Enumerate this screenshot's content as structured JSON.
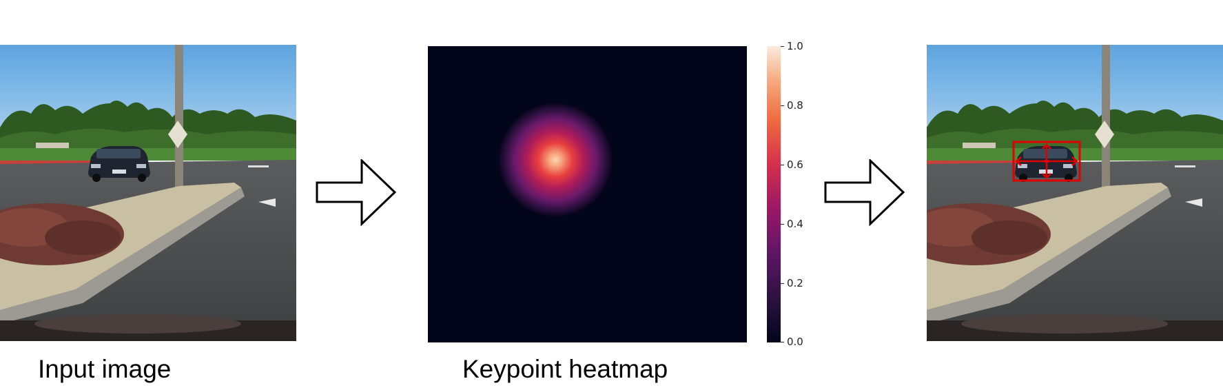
{
  "captions": {
    "input": "Input image",
    "heatmap": "Keypoint heatmap"
  },
  "colorbar": {
    "ticks": [
      "1.0",
      "0.8",
      "0.6",
      "0.4",
      "0.2",
      "0.0"
    ],
    "range": [
      0.0,
      1.0
    ],
    "colormap": "rocket"
  },
  "heatmap": {
    "peak_value": 1.0,
    "background_value": 0.0
  },
  "detection": {
    "box_color": "#e00000",
    "arrow_icons": [
      "arrow-left-icon",
      "arrow-right-icon",
      "arrow-up-icon",
      "arrow-down-icon"
    ]
  },
  "arrows": [
    "right-arrow-icon",
    "right-arrow-icon"
  ]
}
